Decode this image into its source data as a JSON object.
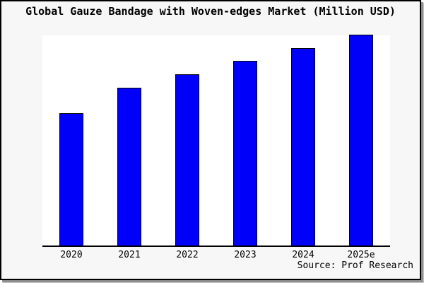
{
  "title": "Global Gauze Bandage with Woven-edges Market (Million USD)",
  "footer": {
    "source": "Source: Prof Research"
  },
  "colors": {
    "bar_fill": "#0000fa",
    "bar_border": "#000000",
    "frame_border": "#000000",
    "frame_background": "#f7f7f7",
    "plot_background": "#ffffff",
    "axis": "#000000",
    "shadow": "#8f8f8f"
  },
  "chart_data": {
    "type": "bar",
    "title": "Global Gauze Bandage with Woven-edges Market (Million USD)",
    "categories": [
      "2020",
      "2021",
      "2022",
      "2023",
      "2024",
      "2025e"
    ],
    "values_percent_of_max": [
      62.5,
      74.9,
      81.3,
      87.6,
      93.6,
      100
    ],
    "xlabel": "",
    "ylabel": "",
    "y_axis_labels_visible": false,
    "gridlines": false,
    "legend_position": "none",
    "source_label": "Source: Prof Research"
  }
}
